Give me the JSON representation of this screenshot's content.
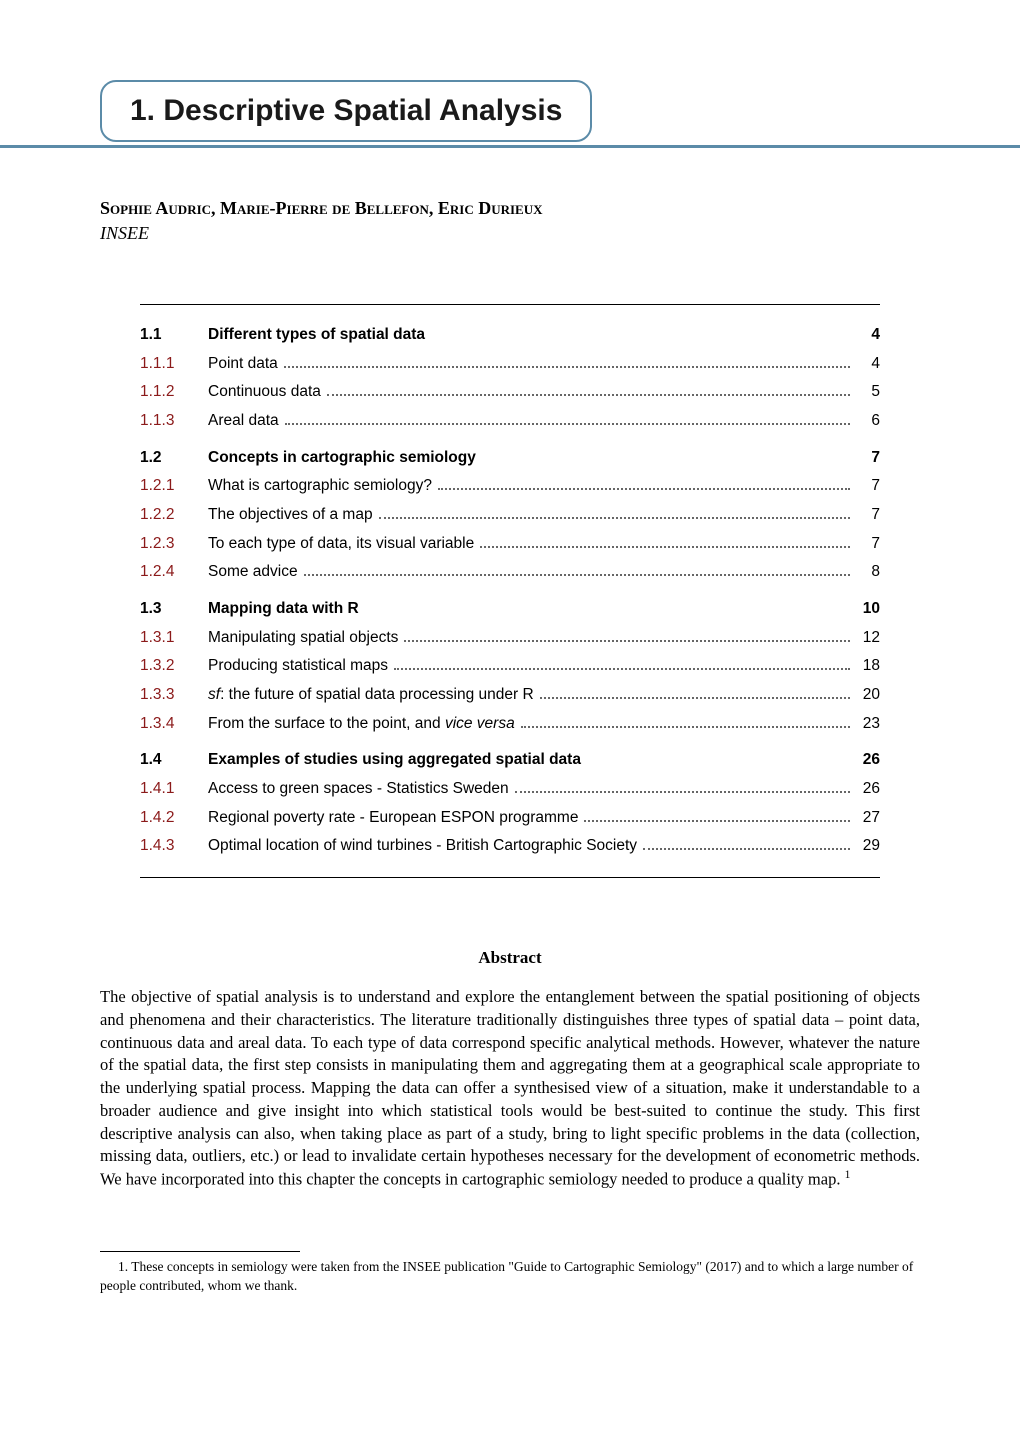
{
  "chapter": {
    "number": "1.",
    "title": "Descriptive Spatial Analysis"
  },
  "authors": "Sophie Audric, Marie-Pierre de Bellefon, Eric Durieux",
  "affiliation": "INSEE",
  "toc": [
    {
      "num": "1.1",
      "label": "Different types of spatial data",
      "page": "4",
      "bold": true,
      "dots": false
    },
    {
      "num": "1.1.1",
      "label": "Point data",
      "page": "4",
      "bold": false,
      "dots": true
    },
    {
      "num": "1.1.2",
      "label": "Continuous data",
      "page": "5",
      "bold": false,
      "dots": true
    },
    {
      "num": "1.1.3",
      "label": "Areal data",
      "page": "6",
      "bold": false,
      "dots": true
    },
    {
      "gap": true
    },
    {
      "num": "1.2",
      "label": "Concepts in cartographic semiology",
      "page": "7",
      "bold": true,
      "dots": false
    },
    {
      "num": "1.2.1",
      "label": "What is cartographic semiology?",
      "page": "7",
      "bold": false,
      "dots": true
    },
    {
      "num": "1.2.2",
      "label": "The objectives of a map",
      "page": "7",
      "bold": false,
      "dots": true
    },
    {
      "num": "1.2.3",
      "label": "To each type of data, its visual variable",
      "page": "7",
      "bold": false,
      "dots": true
    },
    {
      "num": "1.2.4",
      "label": "Some advice",
      "page": "8",
      "bold": false,
      "dots": true
    },
    {
      "gap": true
    },
    {
      "num": "1.3",
      "label": "Mapping data with R",
      "page": "10",
      "bold": true,
      "dots": false
    },
    {
      "num": "1.3.1",
      "label": "Manipulating spatial objects",
      "page": "12",
      "bold": false,
      "dots": true
    },
    {
      "num": "1.3.2",
      "label": "Producing statistical maps",
      "page": "18",
      "bold": false,
      "dots": true
    },
    {
      "num": "1.3.3",
      "label_html": "<span class=\"italic\">sf</span>: the future of spatial data processing under R",
      "page": "20",
      "bold": false,
      "dots": true
    },
    {
      "num": "1.3.4",
      "label_html": "From the surface to the point, and <span class=\"italic\">vice versa</span>",
      "page": "23",
      "bold": false,
      "dots": true
    },
    {
      "gap": true
    },
    {
      "num": "1.4",
      "label": "Examples of studies using aggregated spatial data",
      "page": "26",
      "bold": true,
      "dots": false
    },
    {
      "num": "1.4.1",
      "label": "Access to green spaces - Statistics Sweden",
      "page": "26",
      "bold": false,
      "dots": true
    },
    {
      "num": "1.4.2",
      "label": "Regional poverty rate - European ESPON programme",
      "page": "27",
      "bold": false,
      "dots": true
    },
    {
      "num": "1.4.3",
      "label": "Optimal location of wind turbines - British Cartographic Society",
      "page": "29",
      "bold": false,
      "dots": true
    }
  ],
  "abstract": {
    "title": "Abstract",
    "body_html": "The objective of spatial analysis is to understand and explore the entanglement between the spatial positioning of objects and phenomena and their characteristics. The literature traditionally distinguishes three types of spatial data – point data, continuous data and areal data. To each type of data correspond specific analytical methods. However, whatever the nature of the spatial data, the first step consists in manipulating them and aggregating them at a geographical scale appropriate to the underlying spatial process. Mapping the data can offer a synthesised view of a situation, make it understandable to a broader audience and give insight into which statistical tools would be best-suited to continue the study. This first descriptive analysis can also, when taking place as part of a study, bring to light specific problems in the data (collection, missing data, outliers, etc.) or lead to invalidate certain hypotheses necessary for the development of econometric methods. We have incorporated into this chapter the concepts in cartographic semiology needed to produce a quality map. <sup>1</sup>"
  },
  "footnote": {
    "text": "1. These concepts in semiology were taken from the INSEE publication \"Guide to Cartographic Semiology\" (2017) and to which a large number of people contributed, whom we thank."
  },
  "colors": {
    "accent_red": "#8b1a1a",
    "accent_blue": "#5b8ba8",
    "text": "#000000",
    "background": "#ffffff"
  }
}
